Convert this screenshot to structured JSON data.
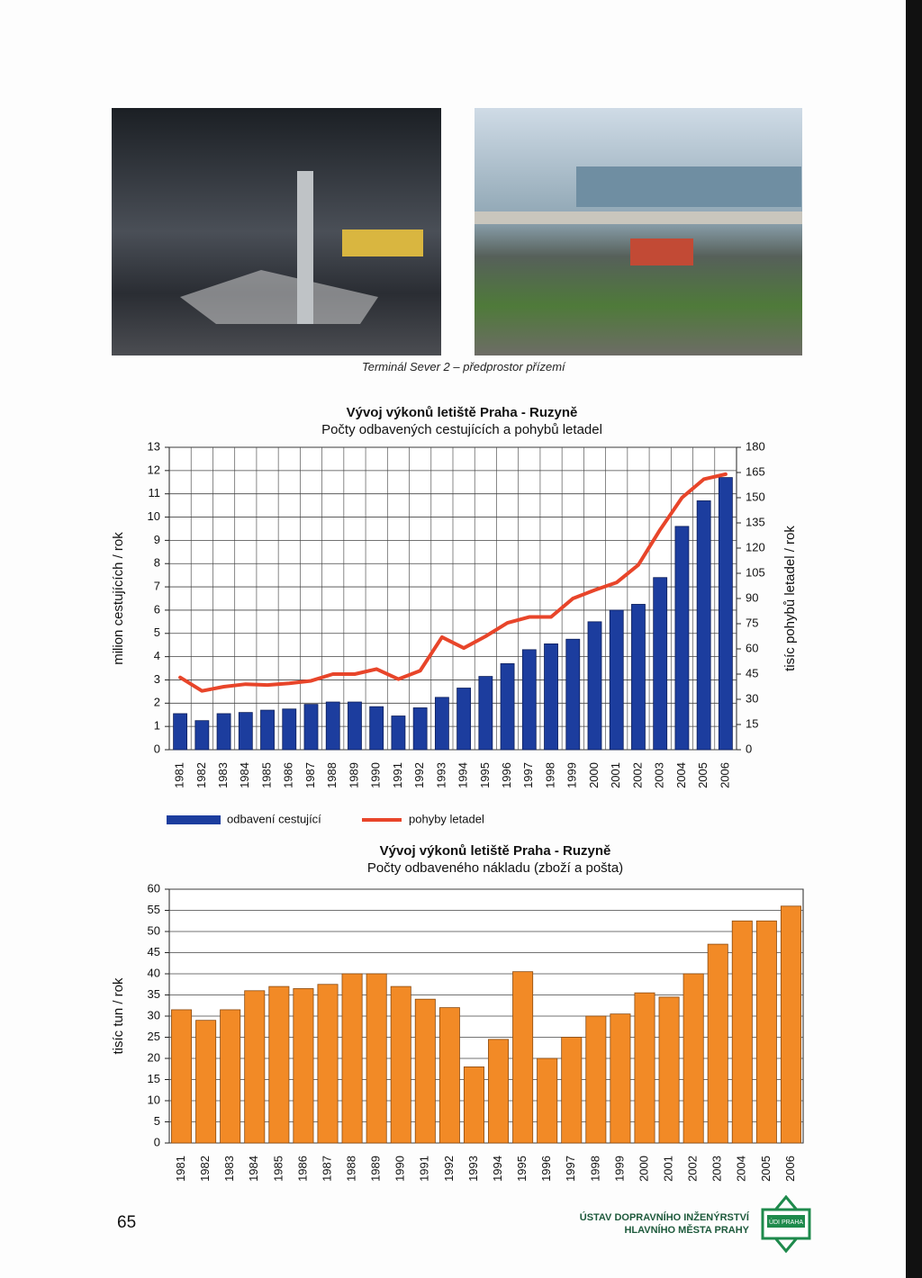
{
  "document": {
    "caption": "Terminál Sever 2 – předprostor přízemí",
    "page_number": "65",
    "footer_lines": [
      "ÚSTAV DOPRAVNÍHO INŽENÝRSTVÍ",
      "HLAVNÍHO MĚSTA PRAHY"
    ],
    "logo_text": "ÚDI PRAHA"
  },
  "chart_data": [
    {
      "type": "combo",
      "title": "Vývoj výkonů letiště Praha - Ruzyně",
      "subtitle": "Počty odbavených cestujících a pohybů letadel",
      "ylabel": "milion cestujících / rok",
      "y2label": "tisíc pohybů letadel / rok",
      "categories": [
        "1981",
        "1982",
        "1983",
        "1984",
        "1985",
        "1986",
        "1987",
        "1988",
        "1989",
        "1990",
        "1991",
        "1992",
        "1993",
        "1994",
        "1995",
        "1996",
        "1997",
        "1998",
        "1999",
        "2000",
        "2001",
        "2002",
        "2003",
        "2004",
        "2005",
        "2006"
      ],
      "series": [
        {
          "name": "odbavení cestující",
          "color": "#1c3d9e",
          "values": [
            1.55,
            1.25,
            1.55,
            1.6,
            1.7,
            1.75,
            1.95,
            2.05,
            2.05,
            1.85,
            1.45,
            1.8,
            2.25,
            2.65,
            3.15,
            3.7,
            4.3,
            4.55,
            4.75,
            5.5,
            6.0,
            6.25,
            7.4,
            9.6,
            10.7,
            11.7
          ]
        },
        {
          "name": "pohyby letadel",
          "color": "#e8452a",
          "axis": "y2",
          "values": [
            43,
            35,
            37.5,
            39,
            38.5,
            39.5,
            41,
            45,
            45,
            48,
            42,
            47,
            67,
            60.5,
            67.5,
            75.5,
            79,
            79,
            90,
            95,
            99.5,
            110,
            131,
            150,
            161,
            164
          ]
        }
      ],
      "ylim": [
        0,
        13
      ],
      "yticks": [
        0,
        1,
        2,
        3,
        4,
        5,
        6,
        7,
        8,
        9,
        10,
        11,
        12,
        13
      ],
      "y2lim": [
        0,
        180
      ],
      "y2ticks": [
        0,
        15,
        30,
        45,
        60,
        75,
        90,
        105,
        120,
        135,
        150,
        165,
        180
      ],
      "grid": true,
      "legend": "bottom"
    },
    {
      "type": "bar",
      "title": "Vývoj výkonů letiště Praha - Ruzyně",
      "subtitle": "Počty odbaveného nákladu (zboží a pošta)",
      "ylabel": "tisíc tun / rok",
      "categories": [
        "1981",
        "1982",
        "1983",
        "1984",
        "1985",
        "1986",
        "1987",
        "1988",
        "1989",
        "1990",
        "1991",
        "1992",
        "1993",
        "1994",
        "1995",
        "1996",
        "1997",
        "1998",
        "1999",
        "2000",
        "2001",
        "2002",
        "2003",
        "2004",
        "2005",
        "2006"
      ],
      "values": [
        31.5,
        29,
        31.5,
        36,
        37,
        36.5,
        37.5,
        40,
        40,
        37,
        34,
        32,
        18,
        24.5,
        40.5,
        20,
        25,
        30,
        30.5,
        35.5,
        34.5,
        40,
        47,
        52.5,
        52.5,
        56
      ],
      "color": "#f28a26",
      "ylim": [
        0,
        60
      ],
      "yticks": [
        0,
        5,
        10,
        15,
        20,
        25,
        30,
        35,
        40,
        45,
        50,
        55,
        60
      ],
      "grid": true
    }
  ]
}
